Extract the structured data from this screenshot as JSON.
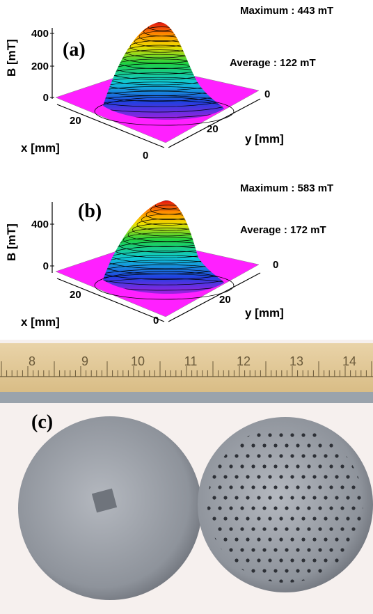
{
  "panels": [
    {
      "label": "(a)",
      "maximum": "Maximum : 443 mT",
      "average": "Average : 122 mT",
      "z_label": "B [mT]",
      "x_label": "x [mm]",
      "y_label": "y [mm]",
      "z_ticks": [
        "400",
        "200",
        "0"
      ],
      "x_ticks": [
        "20",
        "0"
      ],
      "y_ticks": [
        "0",
        "20"
      ]
    },
    {
      "label": "(b)",
      "maximum": "Maximum : 583 mT",
      "average": "Average : 172 mT",
      "z_label": "B [mT]",
      "x_label": "x [mm]",
      "y_label": "y [mm]",
      "z_ticks": [
        "400",
        "0"
      ],
      "x_ticks": [
        "20",
        "0"
      ],
      "y_ticks": [
        "0",
        "20"
      ]
    }
  ],
  "photo": {
    "label": "(c)",
    "ruler_numbers": [
      "8",
      "9",
      "10",
      "11",
      "12",
      "13",
      "14"
    ]
  }
}
